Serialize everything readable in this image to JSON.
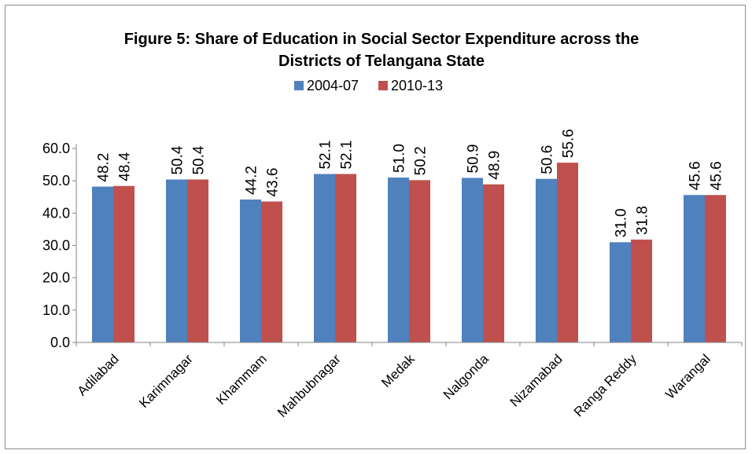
{
  "chart_data": {
    "type": "bar",
    "title_line1": "Figure 5: Share of Education in Social Sector Expenditure across the",
    "title_line2": "Districts of Telangana State",
    "categories": [
      "Adilabad",
      "Karimnagar",
      "Khammam",
      "Mahbubnagar",
      "Medak",
      "Nalgonda",
      "Nizamabad",
      "Ranga Reddy",
      "Warangal"
    ],
    "series": [
      {
        "name": "2004-07",
        "color": "#4f81bd",
        "values": [
          48.2,
          50.4,
          44.2,
          52.1,
          51.0,
          50.9,
          50.6,
          31.0,
          45.6
        ]
      },
      {
        "name": "2010-13",
        "color": "#c0504d",
        "values": [
          48.4,
          50.4,
          43.6,
          52.1,
          50.2,
          48.9,
          55.6,
          31.8,
          45.6
        ]
      }
    ],
    "ylim": [
      0,
      60
    ],
    "yticks": [
      0,
      10,
      20,
      30,
      40,
      50,
      60
    ],
    "yticks_labels": [
      "0.0",
      "10.0",
      "20.0",
      "30.0",
      "40.0",
      "50.0",
      "60.0"
    ],
    "xlabel": "",
    "ylabel": "",
    "grid": false,
    "legend_position": "top"
  }
}
